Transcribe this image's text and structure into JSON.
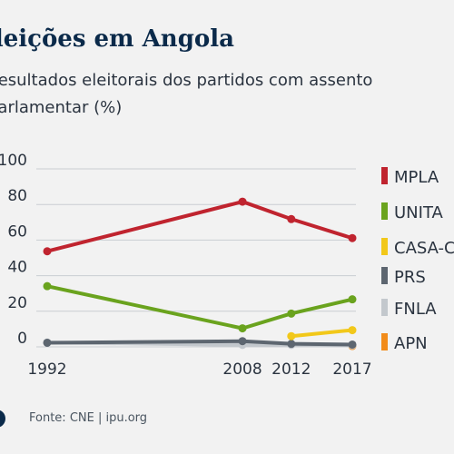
{
  "header": {
    "title": "Eleições em Angola",
    "subtitle_line1": "Resultados eleitorais dos partidos com assento",
    "subtitle_line2": "parlamentar (%)"
  },
  "footer": {
    "source": "Fonte: CNE | ipu.org"
  },
  "chart_data": {
    "type": "line",
    "x": [
      1992,
      2008,
      2012,
      2017
    ],
    "xticks": [
      "1992",
      "2008",
      "2012",
      "2017"
    ],
    "yticks": [
      "0",
      "20",
      "40",
      "60",
      "80",
      "100"
    ],
    "ylim": [
      0,
      100
    ],
    "grid": true,
    "legend_position": "right",
    "series": [
      {
        "name": "MPLA",
        "color": "#c0242f",
        "values": [
          53.7,
          81.6,
          71.8,
          61.1
        ]
      },
      {
        "name": "UNITA",
        "color": "#6aa31e",
        "values": [
          34.1,
          10.4,
          18.7,
          26.7
        ]
      },
      {
        "name": "CASA-CE",
        "color": "#f2c81a",
        "values": [
          null,
          null,
          6.0,
          9.4
        ]
      },
      {
        "name": "PRS",
        "color": "#5d6670",
        "values": [
          2.3,
          3.2,
          1.7,
          1.3
        ]
      },
      {
        "name": "FNLA",
        "color": "#c3c8cd",
        "values": [
          2.4,
          1.1,
          1.1,
          0.9
        ]
      },
      {
        "name": "APN",
        "color": "#f28c1a",
        "values": [
          null,
          null,
          null,
          0.5
        ]
      }
    ]
  }
}
